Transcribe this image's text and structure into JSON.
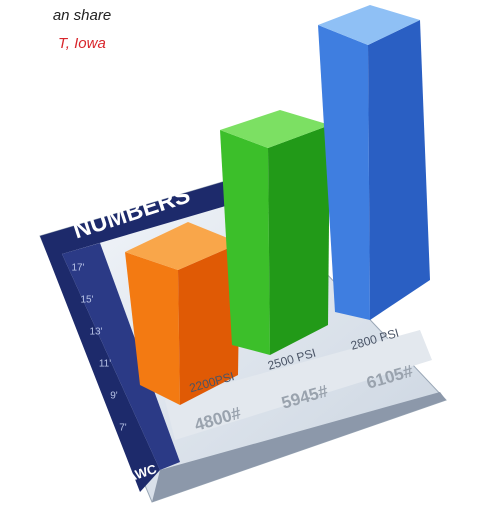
{
  "caption": {
    "line1": "an share",
    "line2": "T, Iowa"
  },
  "logo": {
    "title": "NUMBERS",
    "corner": "AWC",
    "axis_labels": [
      "17'",
      "15'",
      "13'",
      "11'",
      "9'",
      "7'"
    ],
    "bars": [
      {
        "label": "2200PSI",
        "value_label": "4800#"
      },
      {
        "label": "2500 PSI",
        "value_label": "5945#"
      },
      {
        "label": "2800 PSI",
        "value_label": "6105#"
      }
    ]
  }
}
